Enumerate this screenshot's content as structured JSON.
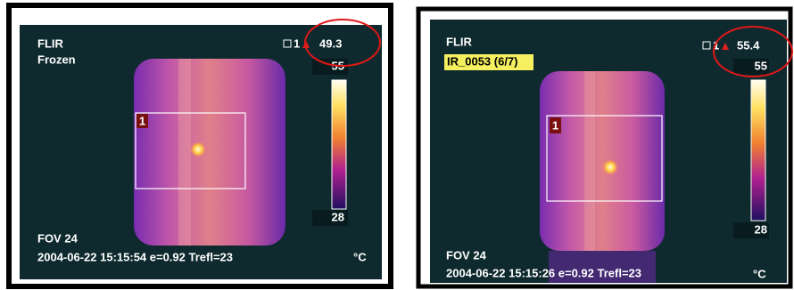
{
  "panels": [
    {
      "brand": "FLIR",
      "label": "Frozen",
      "spot_id": "1",
      "max_reading": "49.3",
      "scale_max": "55",
      "scale_min": "28",
      "fov": "FOV 24",
      "info": "2004-06-22 15:15:54 e=0.92 Trefl=23",
      "unit": "°C"
    },
    {
      "brand": "FLIR",
      "label": "IR_0053 (6/7)",
      "spot_id": "1",
      "max_reading": "55.4",
      "scale_max": "55",
      "scale_min": "28",
      "fov": "FOV 24",
      "info": "2004-06-22 15:15:26 e=0.92 Trefl=23",
      "unit": "°C"
    }
  ]
}
